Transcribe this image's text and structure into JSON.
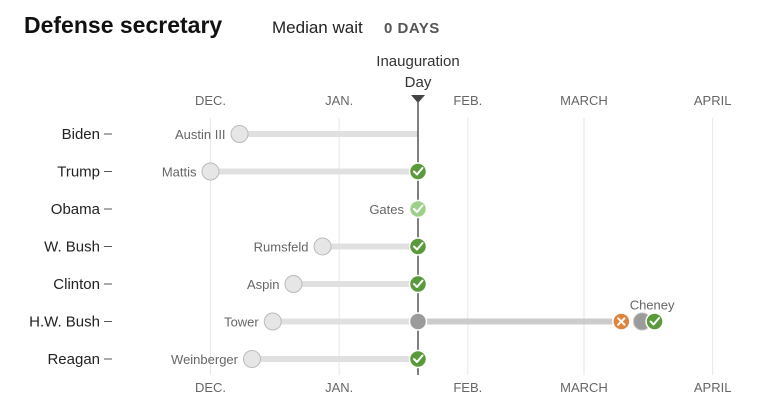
{
  "title": "Defense secretary",
  "median_wait": {
    "label": "Median wait",
    "value": "0 DAYS"
  },
  "chart_data": {
    "type": "timeline",
    "title": "Defense secretary",
    "months": [
      "DEC.",
      "JAN.",
      "FEB.",
      "MARCH",
      "APRIL"
    ],
    "marker_label_line1": "Inauguration",
    "marker_label_line2": "Day",
    "x_unit": "days relative to Inauguration Day",
    "rows": [
      {
        "president": "Biden",
        "nominee": "Austin III",
        "announced": -43,
        "events": []
      },
      {
        "president": "Trump",
        "nominee": "Mattis",
        "announced": -50,
        "events": [
          {
            "day": 0,
            "status": "confirmed"
          }
        ]
      },
      {
        "president": "Obama",
        "nominee": "Gates",
        "announced": null,
        "events": [
          {
            "day": 0,
            "status": "holdover"
          }
        ]
      },
      {
        "president": "W. Bush",
        "nominee": "Rumsfeld",
        "announced": -23,
        "events": [
          {
            "day": 0,
            "status": "confirmed"
          }
        ]
      },
      {
        "president": "Clinton",
        "nominee": "Aspin",
        "announced": -30,
        "events": [
          {
            "day": 0,
            "status": "confirmed"
          }
        ]
      },
      {
        "president": "H.W. Bush",
        "nominee": "Tower",
        "announced": -35,
        "events": [
          {
            "day": 0,
            "status": "pending"
          },
          {
            "day": 49,
            "status": "rejected"
          }
        ]
      },
      {
        "president": "H.W. Bush",
        "nominee": "Cheney",
        "announced": 54,
        "events": [
          {
            "day": 57,
            "status": "confirmed"
          }
        ]
      },
      {
        "president": "Reagan",
        "nominee": "Weinberger",
        "announced": -40,
        "events": [
          {
            "day": 0,
            "status": "confirmed"
          }
        ]
      }
    ],
    "colors": {
      "confirmed": "#5a9a3c",
      "holdover": "#9fd08a",
      "rejected": "#e0843c",
      "pending": "#9b9b9b",
      "announced": "#e6e6e6",
      "line_pre": "#e0e0e0",
      "line_post": "#cccccc"
    }
  }
}
